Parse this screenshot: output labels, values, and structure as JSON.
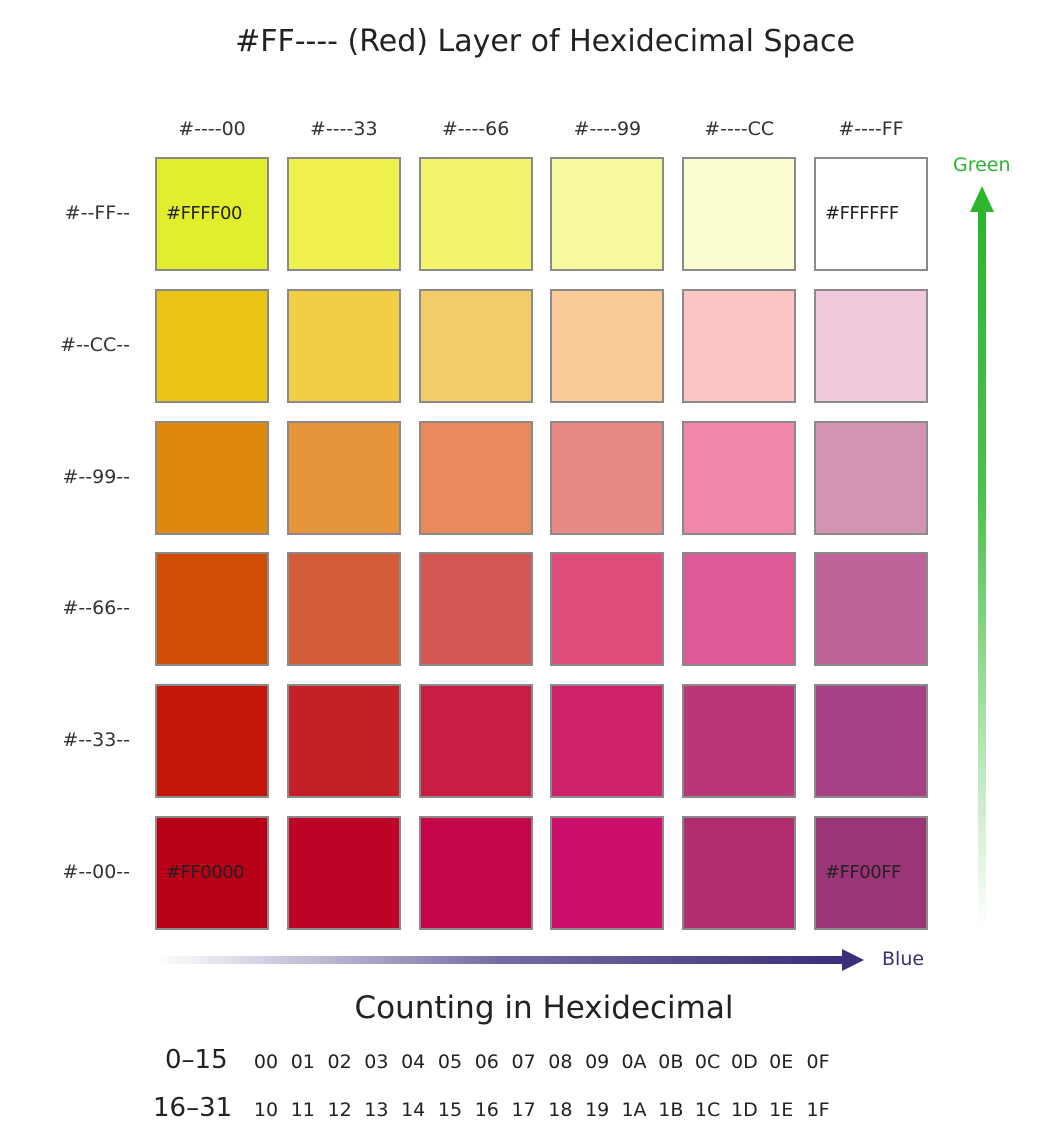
{
  "title": "#FF---- (Red) Layer of Hexidecimal Space",
  "columns": [
    "#----00",
    "#----33",
    "#----66",
    "#----99",
    "#----CC",
    "#----FF"
  ],
  "rows": [
    "#--FF--",
    "#--CC--",
    "#--99--",
    "#--66--",
    "#--33--",
    "#--00--"
  ],
  "grid_colors": [
    [
      "#E1EE2B",
      "#EFF04E",
      "#F3F46B",
      "#F7FA9C",
      "#FBFDD1",
      "#FFFFFF"
    ],
    [
      "#EAC515",
      "#F2CE45",
      "#F3CC6A",
      "#F8CB98",
      "#FAC5C4",
      "#F2C9DC"
    ],
    [
      "#DF880E",
      "#E7953A",
      "#E88A5C",
      "#E88984",
      "#F088AE",
      "#D394B4"
    ],
    [
      "#D04D06",
      "#D35B35",
      "#D45653",
      "#DF4E7A",
      "#DC5A96",
      "#BD639A"
    ],
    [
      "#C21706",
      "#C42027",
      "#CA1D44",
      "#CD2269",
      "#B93679",
      "#A54084"
    ],
    [
      "#B80016",
      "#BE0426",
      "#C4054A",
      "#CB0F6A",
      "#B02E6F",
      "#9C3478"
    ]
  ],
  "corner_labels": {
    "top_left": "#FFFF00",
    "top_right": "#FFFFFF",
    "bottom_left": "#FF0000",
    "bottom_right": "#FF00FF"
  },
  "axes": {
    "green_label": "Green",
    "green_color": "#2DB52D",
    "blue_label": "Blue",
    "blue_color": "#3A2E7A"
  },
  "counting": {
    "title": "Counting in Hexidecimal",
    "rows": [
      {
        "range": "0–15",
        "values": [
          "00",
          "01",
          "02",
          "03",
          "04",
          "05",
          "06",
          "07",
          "08",
          "09",
          "0A",
          "0B",
          "0C",
          "0D",
          "0E",
          "0F"
        ]
      },
      {
        "range": "16–31",
        "values": [
          "10",
          "11",
          "12",
          "13",
          "14",
          "15",
          "16",
          "17",
          "18",
          "19",
          "1A",
          "1B",
          "1C",
          "1D",
          "1E",
          "1F"
        ]
      }
    ]
  }
}
